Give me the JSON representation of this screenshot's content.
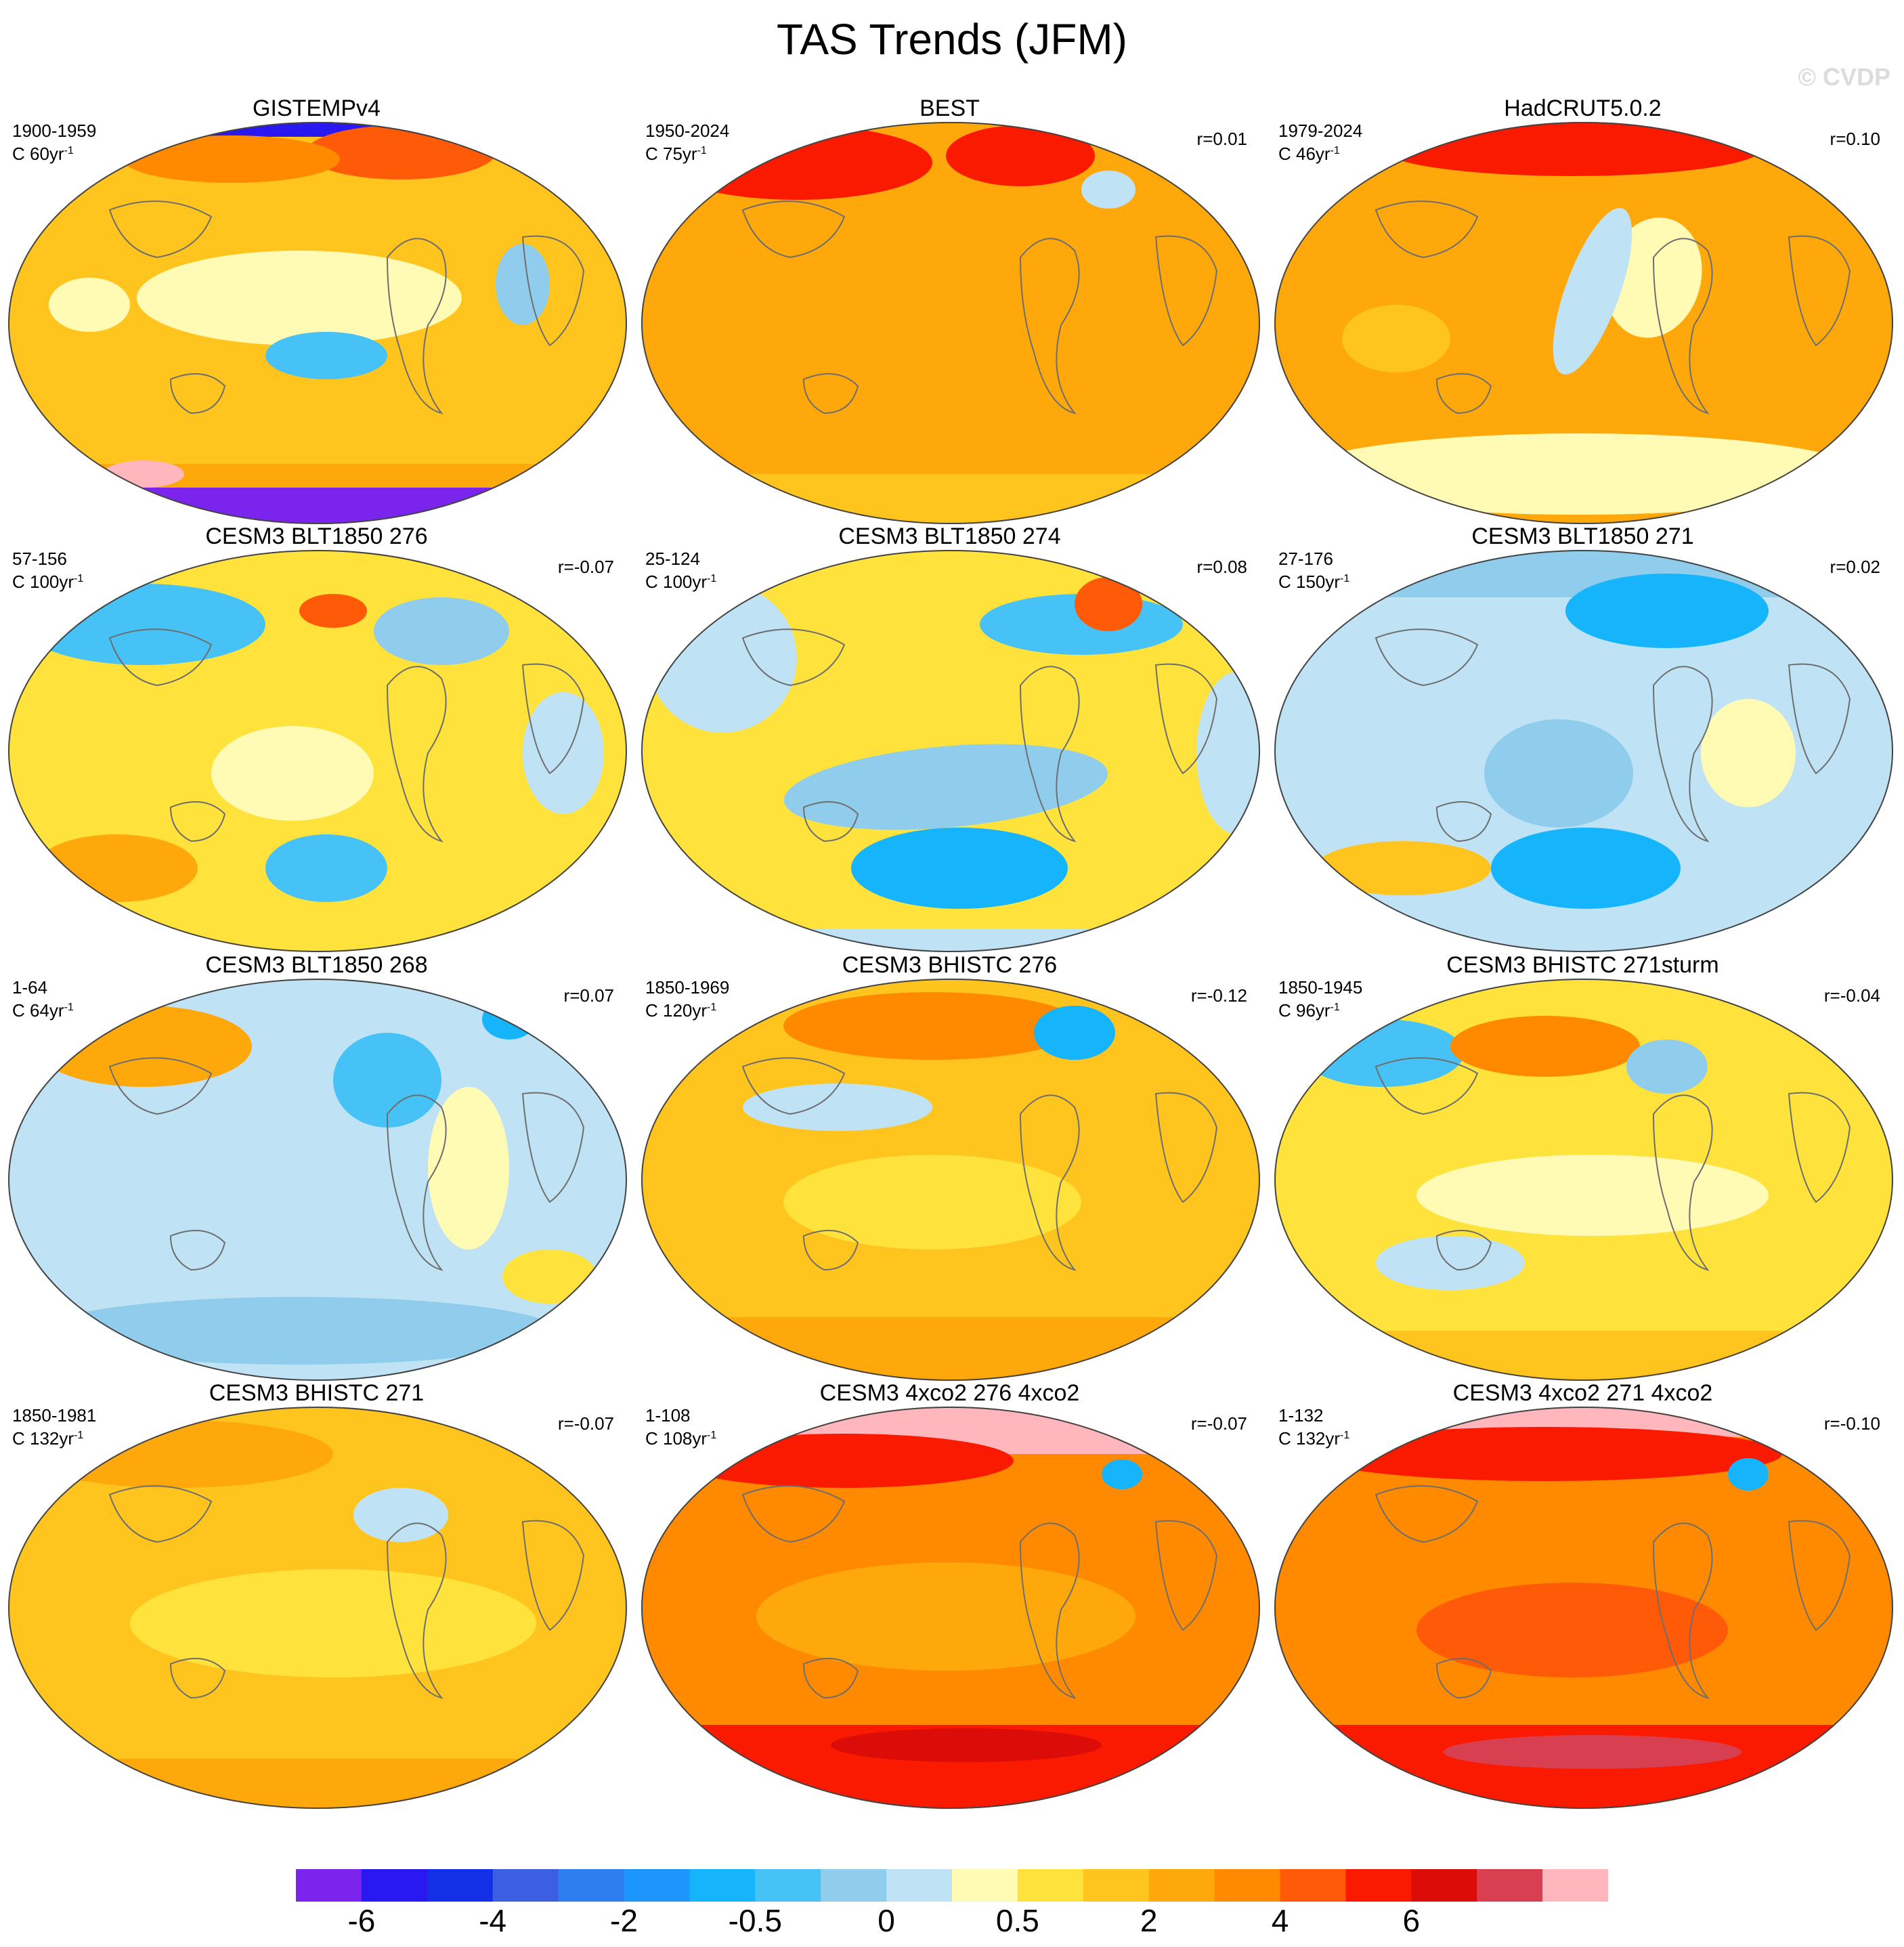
{
  "title": "TAS Trends (JFM)",
  "credit": "© CVDP",
  "scale_prefix": "C",
  "scale_unit": "yr",
  "scale_exp": "-1",
  "panels": [
    {
      "title": "GISTEMPv4",
      "period": "1900-1959",
      "scale": "60",
      "r": "",
      "pattern": "gistemp"
    },
    {
      "title": "BEST",
      "period": "1950-2024",
      "scale": "75",
      "r": "r=0.01",
      "pattern": "best"
    },
    {
      "title": "HadCRUT5.0.2",
      "period": "1979-2024",
      "scale": "46",
      "r": "r=0.10",
      "pattern": "hadcrut"
    },
    {
      "title": "CESM3 BLT1850 276",
      "period": "57-156",
      "scale": "100",
      "r": "r=-0.07",
      "pattern": "blt276"
    },
    {
      "title": "CESM3 BLT1850 274",
      "period": "25-124",
      "scale": "100",
      "r": "r=0.08",
      "pattern": "blt274"
    },
    {
      "title": "CESM3 BLT1850 271",
      "period": "27-176",
      "scale": "150",
      "r": "r=0.02",
      "pattern": "blt271"
    },
    {
      "title": "CESM3 BLT1850 268",
      "period": "1-64",
      "scale": "64",
      "r": "r=0.07",
      "pattern": "blt268"
    },
    {
      "title": "CESM3 BHISTC 276",
      "period": "1850-1969",
      "scale": "120",
      "r": "r=-0.12",
      "pattern": "bhist276"
    },
    {
      "title": "CESM3 BHISTC 271sturm",
      "period": "1850-1945",
      "scale": "96",
      "r": "r=-0.04",
      "pattern": "bhist271s"
    },
    {
      "title": "CESM3 BHISTC 271",
      "period": "1850-1981",
      "scale": "132",
      "r": "r=-0.07",
      "pattern": "bhist271"
    },
    {
      "title": "CESM3 4xco2 276 4xco2",
      "period": "1-108",
      "scale": "108",
      "r": "r=-0.07",
      "pattern": "co2_276"
    },
    {
      "title": "CESM3 4xco2 271 4xco2",
      "period": "1-132",
      "scale": "132",
      "r": "r=-0.10",
      "pattern": "co2_271"
    }
  ],
  "colorbar": {
    "colors": [
      "#7a24ee",
      "#2a18f0",
      "#1430e6",
      "#3c5ee0",
      "#2e7ef0",
      "#1c96fa",
      "#16b4fa",
      "#46c2f6",
      "#90cdec",
      "#bfe3f5",
      "#fffab4",
      "#ffe23c",
      "#ffc41e",
      "#ffa80c",
      "#ff8a00",
      "#ff5a08",
      "#fa1a00",
      "#dc0c08",
      "#d84052",
      "#ffb6bc"
    ],
    "labels": [
      "-6",
      "-4",
      "-2",
      "-0.5",
      "0",
      "0.5",
      "2",
      "4",
      "6"
    ]
  }
}
